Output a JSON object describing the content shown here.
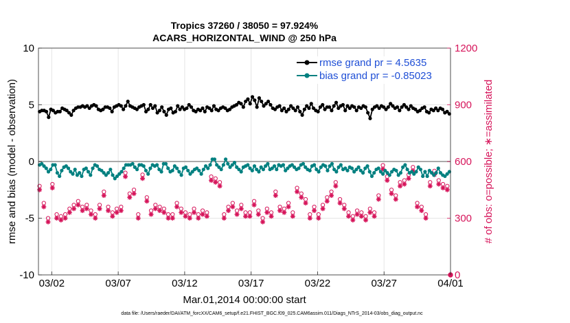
{
  "chart_data": {
    "type": "line",
    "title_line1": "Tropics 37260 / 38050 = 97.924%",
    "title_line2": "ACARS_HORIZONTAL_WIND @ 250 hPa",
    "xlabel": "Mar.01,2014 00:00:00 start",
    "ylabel_left": "rmse and bias (model - observation)",
    "ylabel_right": "# of obs: o=possible; ∗=assimilated",
    "xlim": [
      0,
      31
    ],
    "ylim_left": [
      -10,
      10
    ],
    "ylim_right": [
      0,
      1200
    ],
    "x_ticks": [
      {
        "value": 1,
        "label": "03/02"
      },
      {
        "value": 6,
        "label": "03/07"
      },
      {
        "value": 11,
        "label": "03/12"
      },
      {
        "value": 16,
        "label": "03/17"
      },
      {
        "value": 21,
        "label": "03/22"
      },
      {
        "value": 26,
        "label": "03/27"
      },
      {
        "value": 31,
        "label": "04/01"
      }
    ],
    "y_ticks_left": [
      {
        "value": 10,
        "label": "10"
      },
      {
        "value": 5,
        "label": "5"
      },
      {
        "value": 0,
        "label": "0"
      },
      {
        "value": -5,
        "label": "-5"
      },
      {
        "value": -10,
        "label": "-10"
      }
    ],
    "y_ticks_right": [
      {
        "value": 1200,
        "label": "1200"
      },
      {
        "value": 900,
        "label": "900"
      },
      {
        "value": 600,
        "label": "600"
      },
      {
        "value": 300,
        "label": "300"
      },
      {
        "value": 0,
        "label": "0"
      }
    ],
    "legend": [
      {
        "name": "rmse grand pr = 4.5635",
        "color": "#000000"
      },
      {
        "name": "bias grand pr = -0.85023",
        "color": "#008080"
      }
    ],
    "colors": {
      "rmse": "#000000",
      "bias": "#008080",
      "obs": "#d6145a",
      "zero_line": "#aaaaaa",
      "grid": "#e4e4e4",
      "legend_text": "#1f4fd6"
    },
    "series": [
      {
        "name": "rmse",
        "values": [
          4.4,
          4.5,
          4.5,
          4.4,
          3.9,
          4.6,
          4.5,
          4.3,
          4.4,
          4.4,
          4.7,
          4.6,
          4.5,
          4.3,
          4.1,
          4.5,
          4.7,
          4.8,
          4.8,
          4.9,
          4.8,
          4.9,
          4.7,
          4.9,
          5.0,
          4.9,
          4.6,
          4.5,
          4.6,
          4.8,
          4.8,
          4.7,
          4.4,
          4.8,
          4.9,
          5.0,
          4.9,
          4.6,
          4.9,
          5.3,
          4.9,
          4.8,
          4.7,
          4.6,
          4.8,
          4.9,
          5.0,
          4.4,
          4.6,
          5.0,
          4.7,
          4.9,
          4.3,
          4.5,
          4.8,
          4.4,
          4.1,
          4.6,
          4.7,
          4.3,
          4.4,
          4.9,
          4.6,
          4.8,
          4.6,
          4.7,
          5.0,
          4.8,
          4.5,
          4.4,
          4.6,
          4.5,
          4.7,
          4.4,
          4.8,
          4.7,
          4.5,
          4.9,
          4.6,
          4.5,
          4.7,
          4.8,
          4.7,
          4.5,
          4.6,
          4.8,
          4.9,
          5.0,
          5.2,
          5.1,
          4.8,
          5.3,
          5.5,
          5.1,
          5.7,
          5.4,
          4.8,
          5.6,
          5.3,
          4.9,
          5.1,
          5.3,
          5.0,
          4.7,
          4.6,
          4.8,
          4.9,
          4.5,
          4.7,
          4.4,
          4.6,
          4.9,
          4.7,
          4.5,
          4.8,
          4.4,
          4.1,
          4.6,
          4.9,
          4.7,
          5.1,
          4.7,
          4.5,
          4.4,
          4.8,
          5.0,
          4.6,
          4.8,
          4.8,
          4.5,
          4.9,
          5.2,
          4.7,
          4.9,
          5.0,
          4.5,
          4.9,
          4.7,
          4.9,
          4.8,
          4.5,
          4.8,
          4.7,
          4.9,
          4.8,
          4.3,
          3.8,
          4.6,
          4.8,
          4.9,
          4.7,
          4.9,
          4.8,
          4.6,
          4.8,
          5.1,
          4.9,
          4.7,
          4.8,
          4.5,
          4.8,
          5.0,
          4.8,
          4.6,
          4.9,
          4.7,
          4.6,
          4.4,
          4.5,
          4.7,
          4.8,
          4.4,
          4.3,
          4.6,
          4.5,
          4.7,
          4.5,
          4.7,
          4.6,
          4.3,
          4.4,
          4.2
        ]
      },
      {
        "name": "bias",
        "values": [
          -0.3,
          -0.2,
          -0.4,
          -0.6,
          -0.9,
          -0.7,
          -0.3,
          -0.3,
          -1.0,
          -1.3,
          -0.8,
          -0.5,
          -0.4,
          -0.6,
          -0.9,
          -1.1,
          -0.7,
          -1.2,
          -1.0,
          -1.3,
          -0.7,
          -0.6,
          -0.9,
          -1.2,
          -0.6,
          -0.3,
          -0.4,
          -0.7,
          -0.8,
          -1.0,
          -1.2,
          -1.0,
          -0.7,
          -1.2,
          -1.5,
          -1.3,
          -1.1,
          -0.9,
          -0.6,
          -0.3,
          -0.3,
          -0.3,
          -0.2,
          -0.5,
          -0.7,
          -0.3,
          -0.3,
          -0.4,
          -0.8,
          -1.1,
          -0.6,
          -0.3,
          -0.4,
          -0.3,
          -0.7,
          -0.9,
          -0.2,
          -0.2,
          -0.6,
          -0.9,
          -0.8,
          -0.4,
          -0.6,
          -0.9,
          -1.2,
          -0.6,
          -0.5,
          -0.8,
          -1.1,
          -0.9,
          -0.7,
          -0.6,
          -0.8,
          -1.1,
          -0.7,
          -0.4,
          -0.6,
          -0.3,
          0.2,
          0.2,
          -0.3,
          -0.5,
          -0.7,
          -0.3,
          0.2,
          -0.2,
          -0.5,
          -0.3,
          -0.1,
          -0.5,
          -0.7,
          -0.9,
          -0.5,
          -0.4,
          -0.3,
          -0.6,
          -0.8,
          -0.4,
          -0.7,
          -0.9,
          -0.5,
          -0.7,
          -0.4,
          -0.2,
          -0.7,
          -0.6,
          -0.4,
          -0.7,
          -0.3,
          -0.4,
          -0.3,
          -0.8,
          -0.6,
          -0.4,
          -0.3,
          -0.5,
          -0.7,
          -0.6,
          -0.3,
          -0.2,
          -0.5,
          -0.7,
          -0.8,
          -0.4,
          -0.3,
          -0.7,
          -0.9,
          -0.5,
          -0.3,
          -0.4,
          -0.8,
          -0.4,
          -0.2,
          -0.7,
          -0.9,
          -0.5,
          -0.3,
          -0.7,
          -0.6,
          -0.8,
          -0.5,
          -0.6,
          -0.9,
          -0.7,
          -0.5,
          -0.8,
          -1.0,
          -0.6,
          -0.4,
          -0.9,
          -1.3,
          -1.0,
          -0.7,
          -0.6,
          -0.9,
          -1.1,
          -0.8,
          -1.0,
          -1.2,
          -0.9,
          -0.7,
          -0.8,
          -1.2,
          -1.0,
          -0.5,
          -0.3,
          -0.7,
          -1.0,
          -0.9,
          -1.1,
          -0.9,
          -0.5,
          -0.7,
          -1.3,
          -0.9,
          -1.3,
          -0.8,
          -1.0,
          -1.2,
          -1.0,
          -0.6,
          -1.0,
          -1.2,
          -1.3,
          -1.1,
          -0.9
        ]
      },
      {
        "name": "obs_assimilated",
        "values": [
          450,
          300,
          360,
          310,
          280,
          440,
          460,
          470,
          300,
          280,
          290,
          280,
          300,
          310,
          330,
          300,
          350,
          360,
          370,
          350,
          340,
          390,
          350,
          400,
          320,
          310,
          300,
          330,
          350,
          390,
          420,
          370,
          340,
          300,
          310,
          350,
          330,
          400,
          340,
          490,
          520,
          500,
          410,
          390,
          430,
          320,
          300,
          310,
          510,
          430,
          390,
          350,
          320,
          300,
          350,
          380,
          340,
          320,
          330,
          350,
          300,
          280,
          300,
          340,
          360,
          370,
          330,
          320,
          310,
          350,
          300,
          320,
          330,
          310,
          300,
          290,
          320,
          300,
          310,
          360,
          500,
          480,
          490,
          510,
          470,
          320,
          300,
          310,
          340,
          330,
          360,
          340,
          320,
          380,
          350,
          330,
          310,
          300,
          310,
          350,
          370,
          330,
          320,
          300,
          280,
          310,
          330,
          300,
          310,
          400,
          420,
          360,
          340,
          320,
          330,
          350,
          360,
          340,
          310,
          400,
          440,
          430,
          410,
          390,
          380,
          350,
          300,
          310,
          340,
          320,
          300,
          370,
          350,
          360,
          390,
          440,
          420,
          450,
          470,
          420,
          380,
          390,
          350,
          300,
          310,
          280,
          290,
          310,
          320,
          330,
          310,
          300,
          290,
          320,
          330,
          300,
          310,
          340,
          400,
          520,
          560,
          530,
          500,
          470,
          430,
          380,
          400,
          440,
          470,
          510,
          480,
          450,
          510,
          540,
          550,
          320,
          360,
          330,
          340,
          320,
          300,
          380,
          470,
          500,
          530,
          510,
          480,
          440,
          460,
          500,
          450,
          420
        ]
      },
      {
        "name": "obs_possible",
        "values": [
          470,
          320,
          380,
          330,
          300,
          460,
          480,
          490,
          320,
          300,
          310,
          300,
          320,
          330,
          350,
          320,
          370,
          380,
          390,
          370,
          360,
          410,
          370,
          420,
          340,
          330,
          320,
          350,
          370,
          410,
          440,
          390,
          360,
          320,
          330,
          370,
          350,
          420,
          360,
          510,
          540,
          520,
          430,
          410,
          450,
          340,
          320,
          330,
          530,
          450,
          410,
          370,
          340,
          320,
          370,
          400,
          360,
          340,
          350,
          370,
          320,
          300,
          320,
          360,
          380,
          390,
          350,
          340,
          330,
          370,
          320,
          340,
          350,
          330,
          320,
          310,
          340,
          320,
          330,
          380,
          520,
          500,
          510,
          530,
          490,
          340,
          320,
          330,
          360,
          350,
          380,
          360,
          340,
          400,
          370,
          350,
          330,
          320,
          330,
          370,
          390,
          350,
          340,
          320,
          300,
          330,
          350,
          320,
          330,
          420,
          440,
          380,
          360,
          340,
          350,
          370,
          380,
          360,
          330,
          420,
          460,
          450,
          430,
          410,
          400,
          370,
          320,
          330,
          360,
          340,
          320,
          390,
          370,
          380,
          410,
          460,
          440,
          470,
          490,
          440,
          400,
          410,
          370,
          320,
          330,
          300,
          310,
          330,
          340,
          350,
          330,
          320,
          310,
          340,
          350,
          320,
          330,
          360,
          420,
          540,
          580,
          550,
          520,
          490,
          450,
          400,
          420,
          460,
          490,
          530,
          500,
          470,
          530,
          560,
          570,
          340,
          380,
          350,
          360,
          340,
          320,
          400,
          490,
          520,
          550,
          530,
          500,
          460,
          480,
          520,
          470,
          440
        ]
      }
    ],
    "last_possible_point": {
      "x": 31,
      "value": 0
    }
  },
  "footer": {
    "data_file": "data file: /Users/raeder/DAI/ATM_forcXX/CAM6_setup/f.e21.FHIST_BGC.f09_025.CAM6assim.011/Diags_NTrS_2014-03/obs_diag_output.nc"
  }
}
